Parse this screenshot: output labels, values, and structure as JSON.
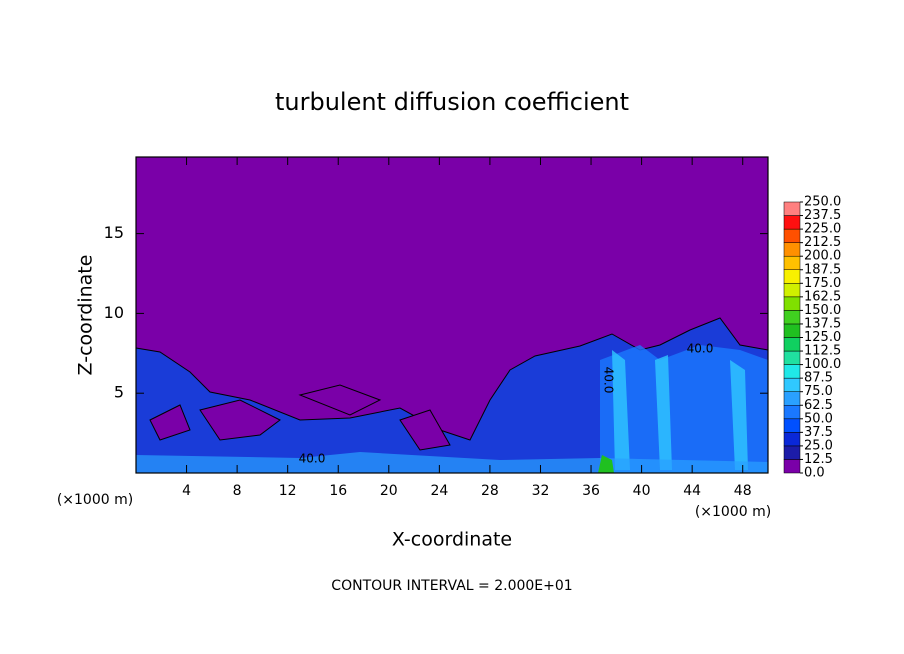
{
  "chart_data": {
    "type": "contour",
    "title": "turbulent diffusion coefficient",
    "x_label": "X-coordinate",
    "y_label": "Z-coordinate",
    "x_unit": "(×1000 m)",
    "y_unit": "(×1000 m)",
    "note": "CONTOUR INTERVAL = 2.000E+01",
    "xlim": [
      0,
      50
    ],
    "xticks": [
      4,
      8,
      12,
      16,
      20,
      24,
      28,
      32,
      36,
      40,
      44,
      48
    ],
    "ylim": [
      0,
      19.8
    ],
    "yticks": [
      5,
      10,
      15
    ],
    "annotations": [
      "40.0",
      "40.0",
      "40.0"
    ],
    "levels": [
      {
        "value": 0,
        "label": "0.0"
      },
      12.5,
      {
        "value": 25,
        "label": "25.0"
      },
      37.5,
      {
        "value": 50,
        "label": "50.0"
      },
      62.5,
      {
        "value": 75,
        "label": "75.0"
      },
      87.5,
      {
        "value": 100,
        "label": "100.0"
      },
      112.5,
      {
        "value": 125,
        "label": "125.0"
      },
      137.5,
      {
        "value": 150,
        "label": "150.0"
      },
      162.5,
      {
        "value": 175,
        "label": "175.0"
      },
      187.5,
      {
        "value": 200,
        "label": "200.0"
      },
      212.5,
      {
        "value": 225,
        "label": "225.0"
      },
      237.5,
      {
        "value": 250,
        "label": "250.0"
      }
    ],
    "colors": [
      "#7a00a8",
      "#1c1ca8",
      "#0a28d8",
      "#0050ff",
      "#1a78ff",
      "#2aa0ff",
      "#30c8ff",
      "#20e8e8",
      "#20e0a0",
      "#10d060",
      "#20c020",
      "#40d020",
      "#80e000",
      "#d0f000",
      "#f8f000",
      "#ffc000",
      "#ff9000",
      "#ff5000",
      "#ff1010",
      "#ff8080"
    ]
  }
}
